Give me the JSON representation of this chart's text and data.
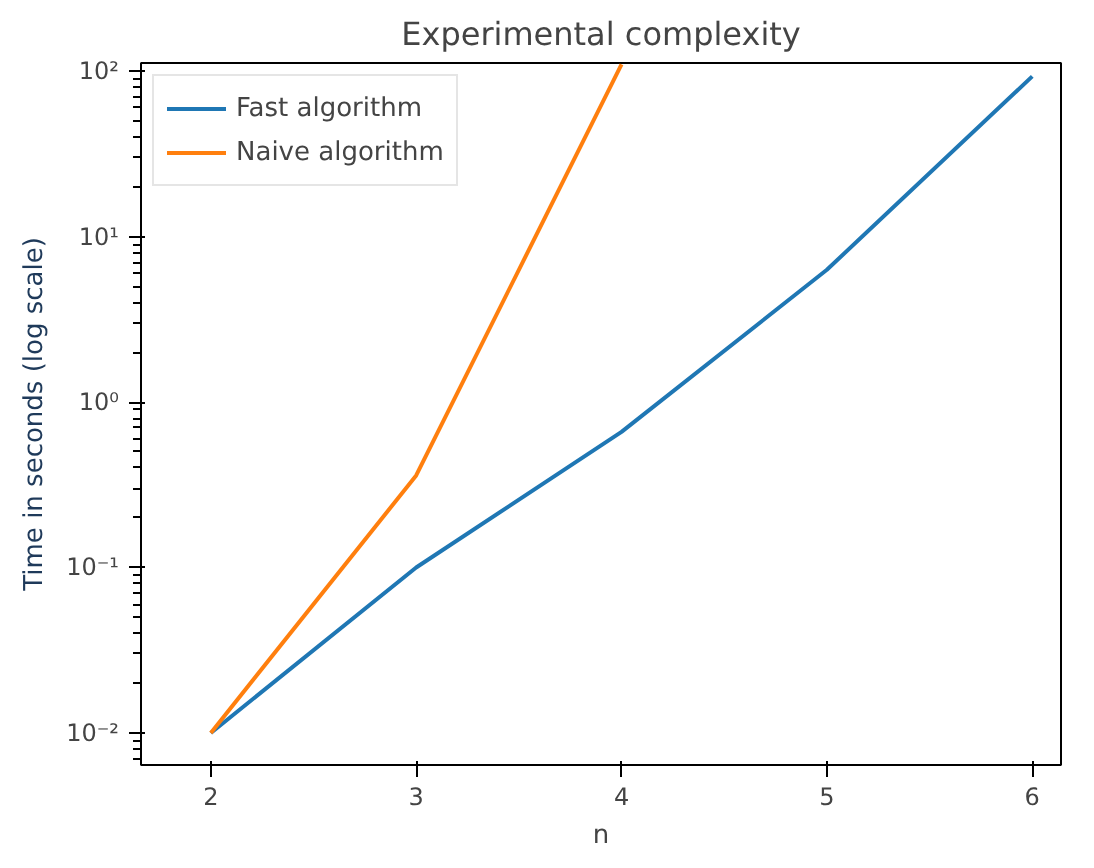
{
  "chart_data": {
    "type": "line",
    "title": "Experimental complexity",
    "xlabel": "n",
    "ylabel": "Time in seconds (log scale)",
    "x": [
      2,
      3,
      4,
      5,
      6
    ],
    "series": [
      {
        "name": "Fast algorithm",
        "color": "#1f77b4",
        "values": [
          0.01,
          0.1,
          0.66,
          6.3,
          93
        ]
      },
      {
        "name": "Naive algorithm",
        "color": "#ff7f0e",
        "values": [
          0.01,
          0.36,
          110,
          null,
          null
        ]
      }
    ],
    "log": "y",
    "xlim": [
      1.66,
      6.14
    ],
    "ylim": [
      0.0064,
      112
    ],
    "xticks": [
      2,
      3,
      4,
      5,
      6
    ],
    "yticks": [
      {
        "value": 0.01,
        "label": "10⁻²"
      },
      {
        "value": 0.1,
        "label": "10⁻¹"
      },
      {
        "value": 1,
        "label": "10⁰"
      },
      {
        "value": 10,
        "label": "10¹"
      },
      {
        "value": 100,
        "label": "10²"
      }
    ],
    "grid": false,
    "legend": "top left",
    "marker": "none",
    "line_style": "solid"
  }
}
